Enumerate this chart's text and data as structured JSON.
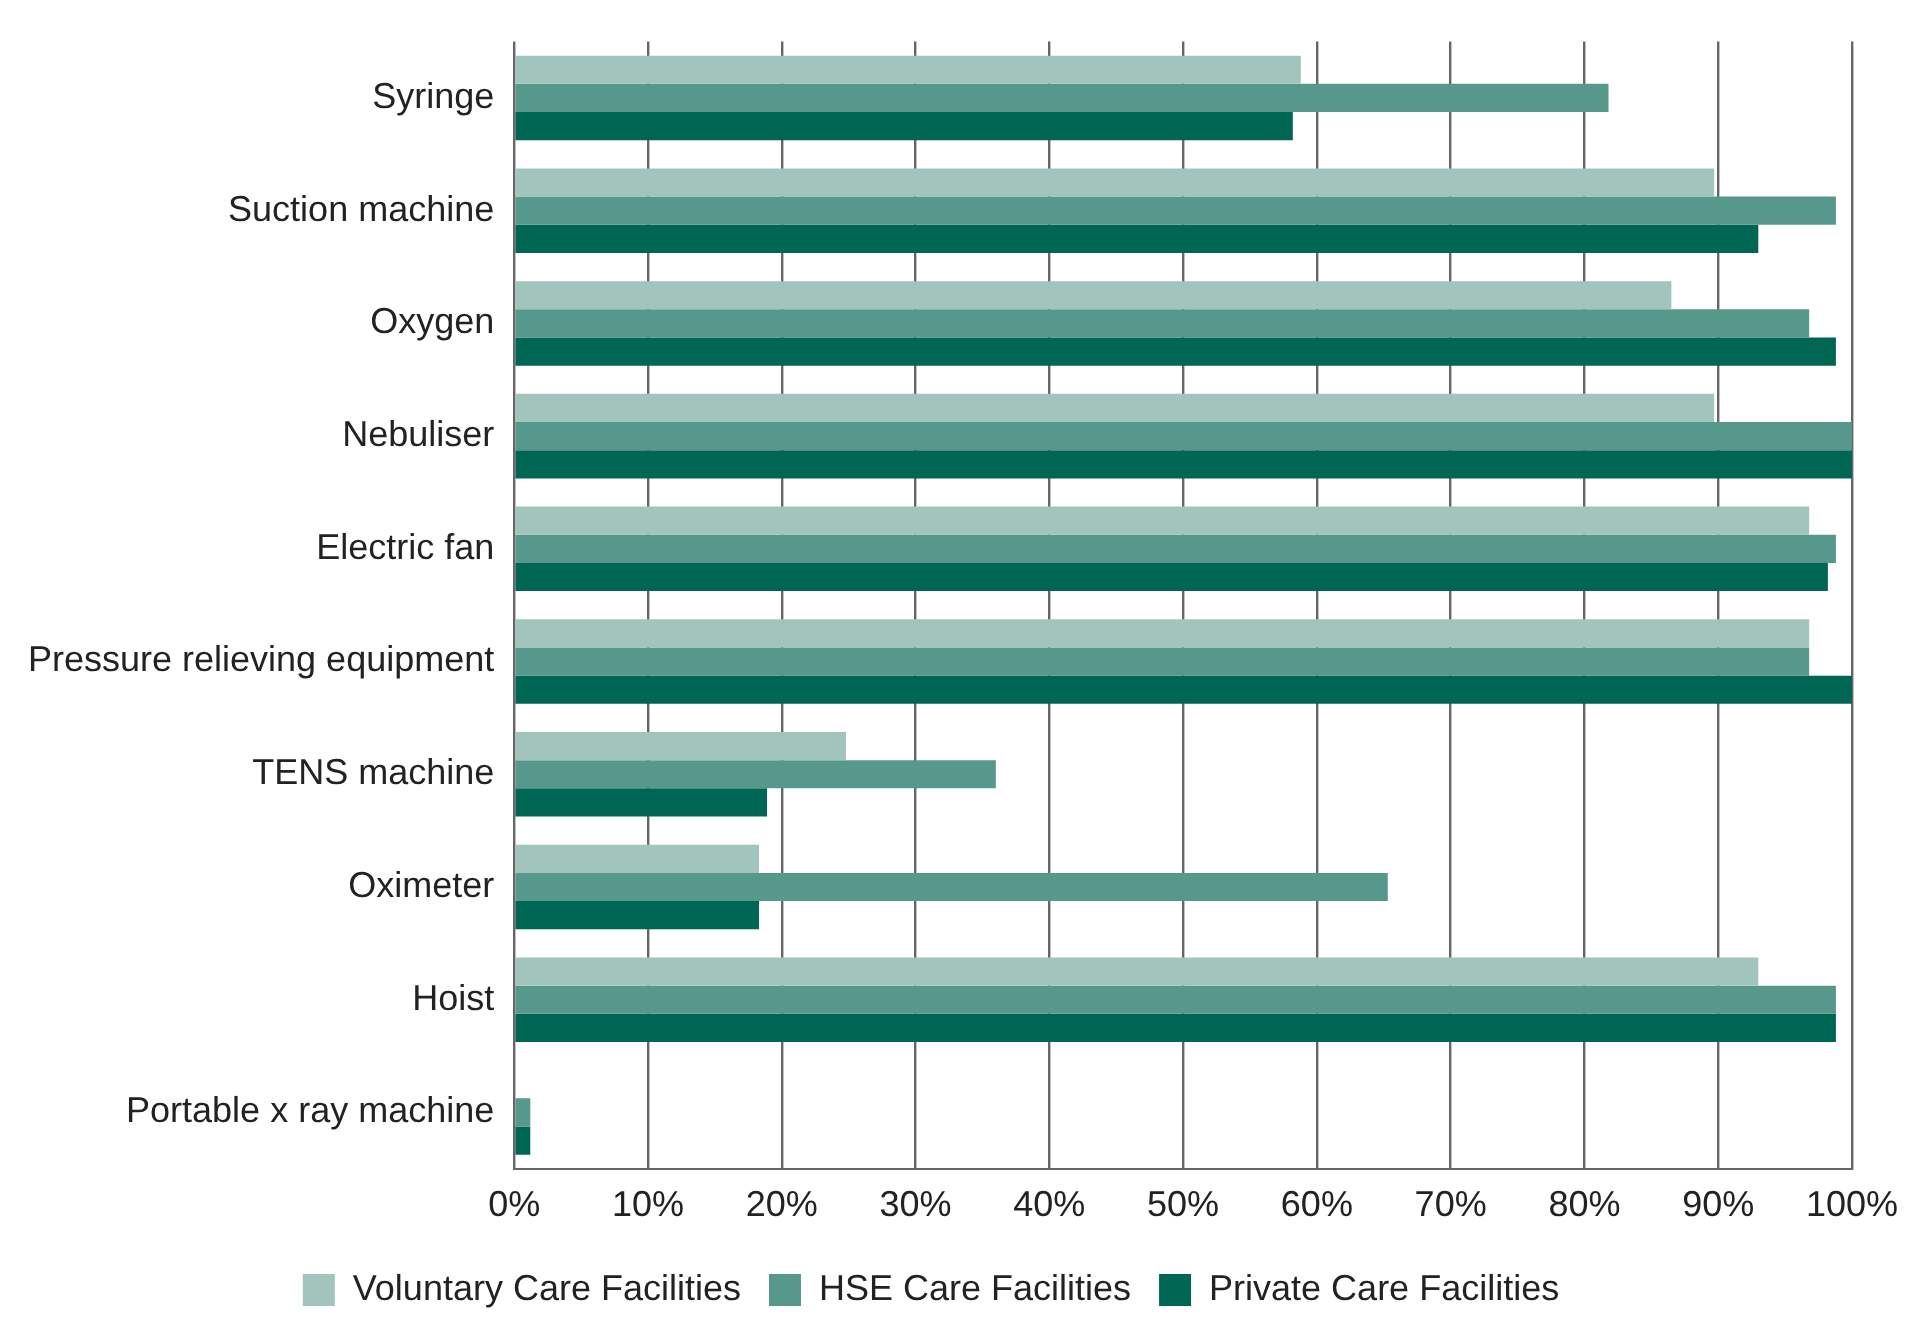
{
  "chart_data": {
    "type": "bar",
    "orientation": "horizontal",
    "categories": [
      "Syringe",
      "Suction machine",
      "Oxygen",
      "Nebuliser",
      "Electric fan",
      "Pressure relieving equipment",
      "TENS machine",
      "Oximeter",
      "Hoist",
      "Portable x ray machine"
    ],
    "series": [
      {
        "name": "Voluntary Care Facilities",
        "color": "#a1c4bd",
        "values": [
          58.8,
          89.7,
          86.5,
          89.7,
          96.8,
          96.8,
          24.8,
          18.3,
          93.0,
          0
        ]
      },
      {
        "name": "HSE Care Facilities",
        "color": "#56988b",
        "values": [
          81.8,
          98.8,
          96.8,
          100,
          98.8,
          96.8,
          36.0,
          65.3,
          98.8,
          1.2
        ]
      },
      {
        "name": "Private Care Facilities",
        "color": "#006654",
        "values": [
          58.2,
          93.0,
          98.8,
          100,
          98.2,
          100,
          18.9,
          18.3,
          98.8,
          1.2
        ]
      }
    ],
    "xlim": [
      0,
      100
    ],
    "xticks": [
      {
        "value": 0,
        "label": "0%"
      },
      {
        "value": 10,
        "label": "10%"
      },
      {
        "value": 20,
        "label": "20%"
      },
      {
        "value": 30,
        "label": "30%"
      },
      {
        "value": 40,
        "label": "40%"
      },
      {
        "value": 50,
        "label": "50%"
      },
      {
        "value": 60,
        "label": "60%"
      },
      {
        "value": 70,
        "label": "70%"
      },
      {
        "value": 80,
        "label": "80%"
      },
      {
        "value": 90,
        "label": "90%"
      },
      {
        "value": 100,
        "label": "100%"
      }
    ],
    "grid": "x",
    "legend": "bottom"
  }
}
